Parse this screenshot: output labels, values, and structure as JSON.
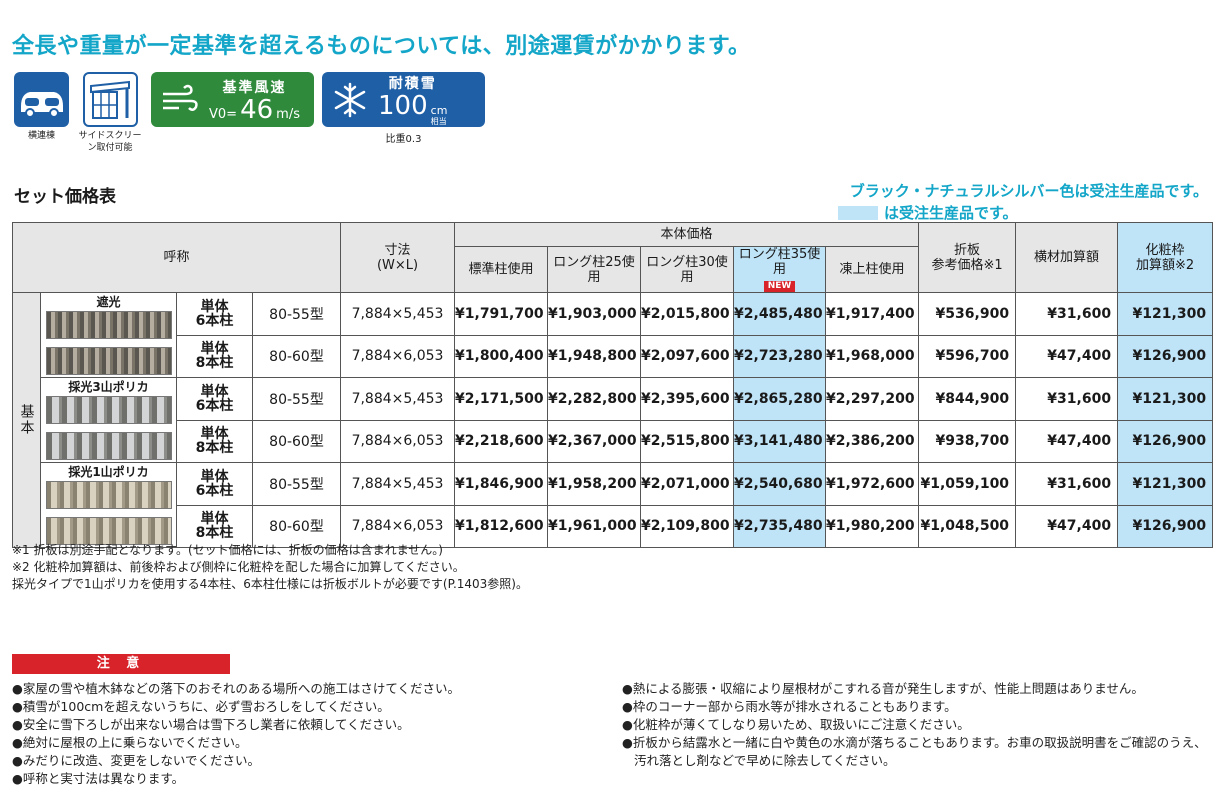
{
  "headline": "全長や重量が一定基準を超えるものについては、別途運賃がかかります。",
  "icons": [
    {
      "name": "car-icon",
      "caption": "横連棟"
    },
    {
      "name": "side-screen-icon",
      "caption": "サイドスクリーン取付可能"
    }
  ],
  "wind_badge": {
    "title": "基準風速",
    "prefix": "V0=",
    "value": "46",
    "unit": "m/s",
    "icon": "wind-icon",
    "color": "#2f8a3c"
  },
  "snow_badge": {
    "title": "耐積雪",
    "value": "100",
    "unit_top": "cm",
    "unit_bottom": "相当",
    "icon": "snowflake-icon",
    "color": "#1f5fa6",
    "note": "比重0.3"
  },
  "section_title": "セット価格表",
  "legend": {
    "line1": "ブラック・ナチュラルシルバー色は受注生産品です。",
    "line2": "は受注生産品です。",
    "swatch_color": "#bfe3f7"
  },
  "table": {
    "headers": {
      "name": "呼称",
      "dims": "寸法",
      "dims_unit": "(W×L)",
      "body_price": "本体価格",
      "standard": "標準柱使用",
      "long25": "ロング柱25使用",
      "long30": "ロング柱30使用",
      "long35": "ロング柱35使用",
      "new": "NEW",
      "frost": "凍上柱使用",
      "folded": "折板",
      "folded_sub": "参考価格※1",
      "beam": "横材加算額",
      "trim": "化粧枠",
      "trim_sub": "加算額※2"
    },
    "base_label": "基本",
    "groups": [
      {
        "label": "遮光",
        "rows": [
          {
            "spec_top": "単体",
            "spec_bottom": "6本柱",
            "model": "80-55型",
            "dims": "7,884×5,453",
            "standard": "¥1,791,700",
            "long25": "¥1,903,000",
            "long30": "¥2,015,800",
            "long35": "¥2,485,480",
            "frost": "¥1,917,400",
            "folded": "¥536,900",
            "beam": "¥31,600",
            "trim": "¥121,300"
          },
          {
            "spec_top": "単体",
            "spec_bottom": "8本柱",
            "model": "80-60型",
            "dims": "7,884×6,053",
            "standard": "¥1,800,400",
            "long25": "¥1,948,800",
            "long30": "¥2,097,600",
            "long35": "¥2,723,280",
            "frost": "¥1,968,000",
            "folded": "¥596,700",
            "beam": "¥47,400",
            "trim": "¥126,900"
          }
        ]
      },
      {
        "label": "採光3山ポリカ",
        "rows": [
          {
            "spec_top": "単体",
            "spec_bottom": "6本柱",
            "model": "80-55型",
            "dims": "7,884×5,453",
            "standard": "¥2,171,500",
            "long25": "¥2,282,800",
            "long30": "¥2,395,600",
            "long35": "¥2,865,280",
            "frost": "¥2,297,200",
            "folded": "¥844,900",
            "beam": "¥31,600",
            "trim": "¥121,300"
          },
          {
            "spec_top": "単体",
            "spec_bottom": "8本柱",
            "model": "80-60型",
            "dims": "7,884×6,053",
            "standard": "¥2,218,600",
            "long25": "¥2,367,000",
            "long30": "¥2,515,800",
            "long35": "¥3,141,480",
            "frost": "¥2,386,200",
            "folded": "¥938,700",
            "beam": "¥47,400",
            "trim": "¥126,900"
          }
        ]
      },
      {
        "label": "採光1山ポリカ",
        "rows": [
          {
            "spec_top": "単体",
            "spec_bottom": "6本柱",
            "model": "80-55型",
            "dims": "7,884×5,453",
            "standard": "¥1,846,900",
            "long25": "¥1,958,200",
            "long30": "¥2,071,000",
            "long35": "¥2,540,680",
            "frost": "¥1,972,600",
            "folded": "¥1,059,100",
            "beam": "¥31,600",
            "trim": "¥121,300"
          },
          {
            "spec_top": "単体",
            "spec_bottom": "8本柱",
            "model": "80-60型",
            "dims": "7,884×6,053",
            "standard": "¥1,812,600",
            "long25": "¥1,961,000",
            "long30": "¥2,109,800",
            "long35": "¥2,735,480",
            "frost": "¥1,980,200",
            "folded": "¥1,048,500",
            "beam": "¥47,400",
            "trim": "¥126,900"
          }
        ]
      }
    ]
  },
  "notes": [
    "※1 折板は別途手配となります。(セット価格には、折板の価格は含まれません。)",
    "※2 化粧枠加算額は、前後枠および側枠に化粧枠を配した場合に加算してください。",
    "採光タイプで1山ポリカを使用する4本柱、6本柱仕様には折板ボルトが必要です(P.1403参照)。"
  ],
  "caution": {
    "title": "注 意",
    "left": [
      "●家屋の雪や植木鉢などの落下のおそれのある場所への施工はさけてください。",
      "●積雪が100cmを超えないうちに、必ず雪おろしをしてください。",
      "●安全に雪下ろしが出来ない場合は雪下ろし業者に依頼してください。",
      "●絶対に屋根の上に乗らないでください。",
      "●みだりに改造、変更をしないでください。",
      "●呼称と実寸法は異なります。"
    ],
    "right": [
      "●熱による膨張・収縮により屋根材がこすれる音が発生しますが、性能上問題はありません。",
      "●枠のコーナー部から雨水等が排水されることもあります。",
      "●化粧枠が薄くてしなり易いため、取扱いにご注意ください。",
      "●折板から結露水と一緒に白や黄色の水滴が落ちることもあります。お車の取扱説明書をご確認のうえ、汚れ落とし剤などで早めに除去してください。"
    ]
  }
}
